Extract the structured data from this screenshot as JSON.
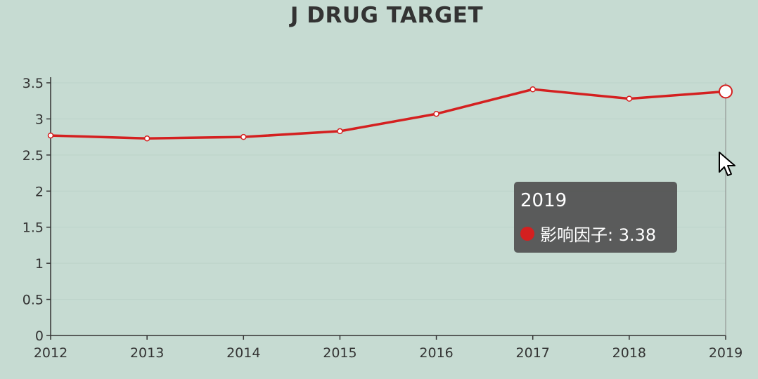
{
  "chart_data": {
    "type": "line",
    "title": "J DRUG TARGET",
    "categories": [
      "2012",
      "2013",
      "2014",
      "2015",
      "2016",
      "2017",
      "2018",
      "2019"
    ],
    "series": [
      {
        "name": "影响因子",
        "values": [
          2.77,
          2.73,
          2.75,
          2.83,
          3.07,
          3.41,
          3.28,
          3.38
        ],
        "color": "#d42020"
      }
    ],
    "ylim": [
      0,
      3.5
    ],
    "yticks": [
      "0",
      "0.5",
      "1",
      "1.5",
      "2",
      "2.5",
      "3",
      "3.5"
    ],
    "xlabel": "",
    "ylabel": "",
    "grid": true
  },
  "tooltip": {
    "title": "2019",
    "series_name": "影响因子",
    "value": "3.38",
    "label": "影响因子: 3.38"
  }
}
